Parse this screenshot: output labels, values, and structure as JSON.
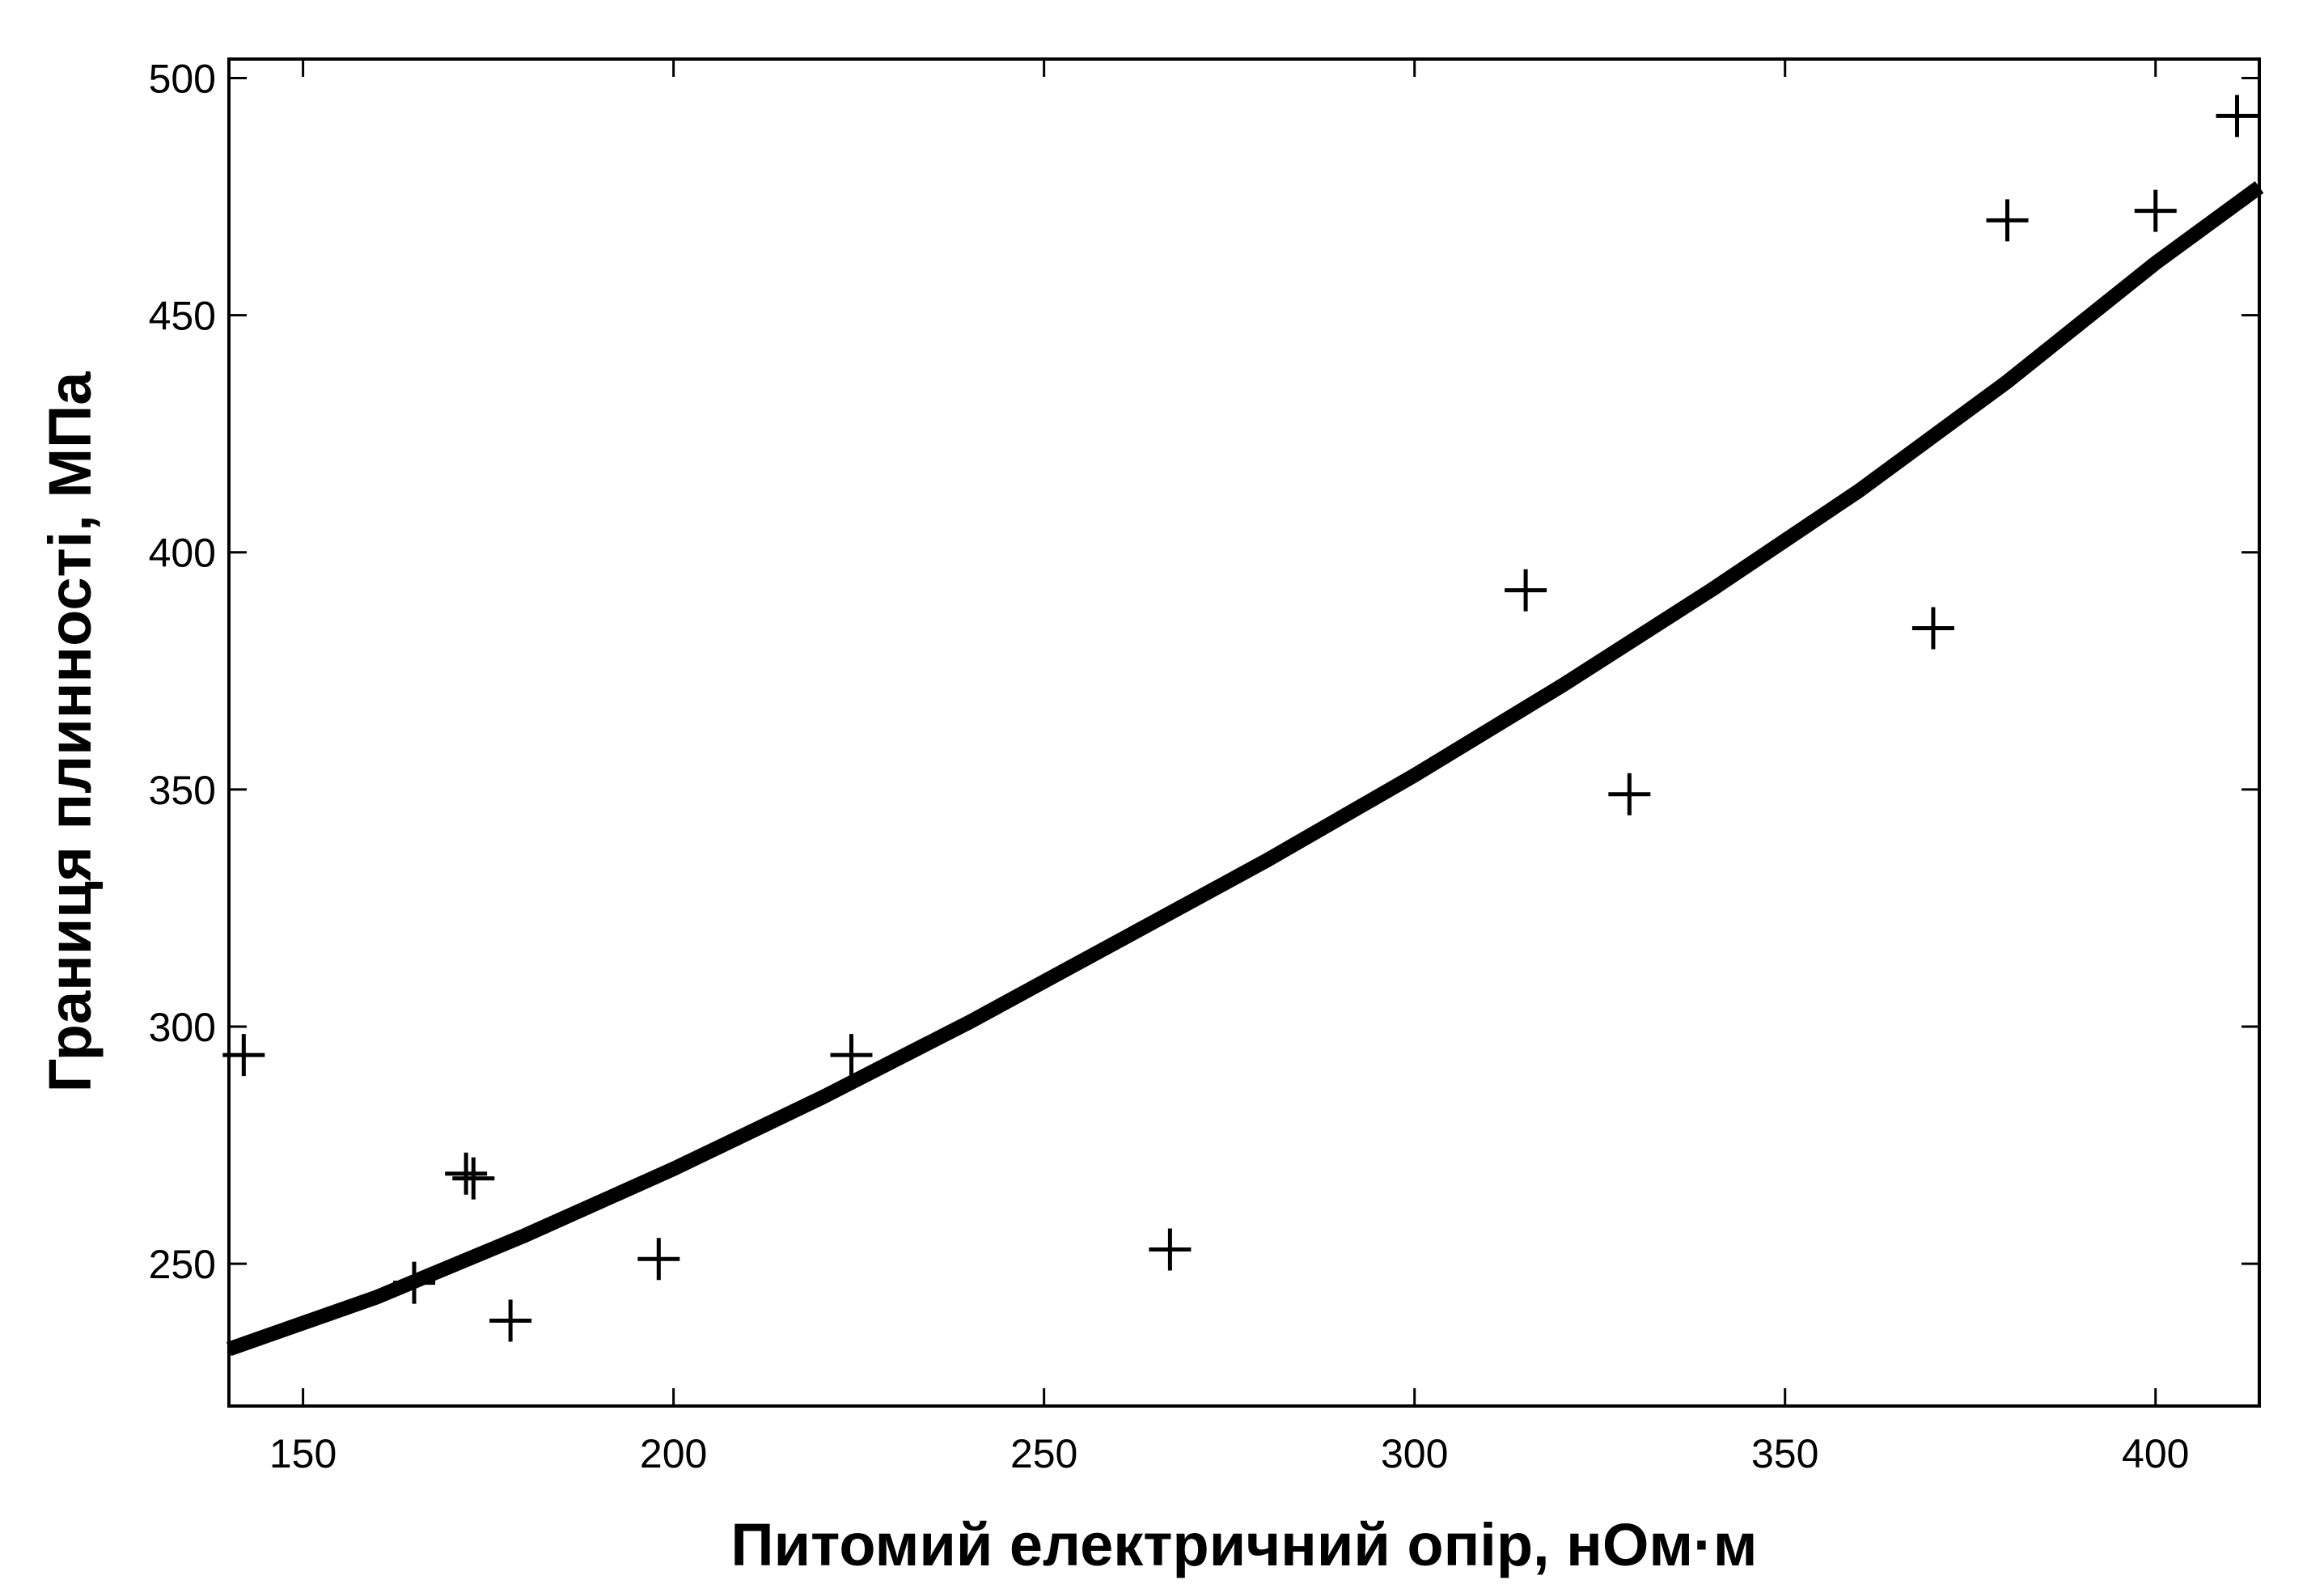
{
  "chart_data": {
    "type": "scatter",
    "xlabel": "Питомий електричний опір, нОм·м",
    "ylabel": "Границя плинності, МПа",
    "xlim": [
      140,
      414
    ],
    "ylim": [
      220,
      504
    ],
    "xticks": [
      150,
      200,
      250,
      300,
      350,
      400
    ],
    "yticks": [
      250,
      300,
      350,
      400,
      450,
      500
    ],
    "xtick_labels": [
      "150",
      "200",
      "250",
      "300",
      "350",
      "400"
    ],
    "ytick_labels": [
      "250",
      "300",
      "350",
      "400",
      "450",
      "500"
    ],
    "grid": false,
    "legend": "none",
    "series": [
      {
        "kind": "points",
        "marker": "plus",
        "x": [
          142,
          165,
          172,
          173,
          178,
          198,
          224,
          267,
          315,
          329,
          370,
          380,
          400,
          411
        ],
        "y": [
          294,
          246,
          269,
          268,
          238,
          251,
          294,
          253,
          392,
          349,
          384,
          470,
          472,
          492
        ]
      },
      {
        "kind": "fit-curve",
        "x": [
          140,
          160,
          180,
          200,
          220,
          240,
          260,
          280,
          300,
          320,
          340,
          360,
          380,
          400,
          414
        ],
        "y": [
          232,
          243,
          256,
          270,
          285,
          301,
          318,
          335,
          353,
          372,
          392,
          413,
          436,
          461,
          477
        ]
      }
    ]
  }
}
